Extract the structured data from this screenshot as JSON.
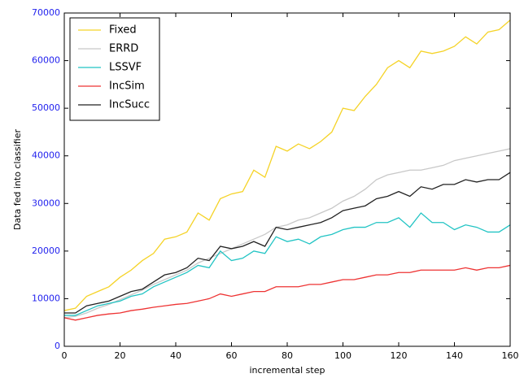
{
  "chart_data": {
    "type": "line",
    "xlabel": "incremental step",
    "ylabel": "Data fed into classifier",
    "x": [
      0,
      4,
      8,
      12,
      16,
      20,
      24,
      28,
      32,
      36,
      40,
      44,
      48,
      52,
      56,
      60,
      64,
      68,
      72,
      76,
      80,
      84,
      88,
      92,
      96,
      100,
      104,
      108,
      112,
      116,
      120,
      124,
      128,
      132,
      136,
      140,
      144,
      148,
      152,
      156,
      160
    ],
    "series": [
      {
        "name": "Fixed",
        "color": "#f5d327",
        "values": [
          7500,
          8000,
          10500,
          11500,
          12500,
          14500,
          16000,
          18000,
          19500,
          22500,
          23000,
          24000,
          28000,
          26500,
          31000,
          32000,
          32500,
          37000,
          35500,
          42000,
          41000,
          42500,
          41500,
          43000,
          45000,
          50000,
          49500,
          52500,
          55000,
          58500,
          60000,
          58500,
          62000,
          61500,
          62000,
          63000,
          65000,
          63500,
          66000,
          66500,
          68500
        ]
      },
      {
        "name": "ERRD",
        "color": "#c8c8c8",
        "values": [
          6000,
          6300,
          7000,
          8000,
          8800,
          9800,
          10800,
          11800,
          13000,
          14000,
          15000,
          16000,
          17500,
          18500,
          19500,
          20500,
          21500,
          22500,
          23500,
          25000,
          25500,
          26500,
          27000,
          28000,
          29000,
          30500,
          31500,
          33000,
          35000,
          36000,
          36500,
          37000,
          37000,
          37500,
          38000,
          39000,
          39500,
          40000,
          40500,
          41000,
          41500
        ]
      },
      {
        "name": "LSSVF",
        "color": "#22c4c4",
        "values": [
          6500,
          6500,
          7500,
          8500,
          9000,
          9500,
          10500,
          11000,
          12500,
          13500,
          14500,
          15500,
          17000,
          16500,
          20000,
          18000,
          18500,
          20000,
          19500,
          23000,
          22000,
          22500,
          21500,
          23000,
          23500,
          24500,
          25000,
          25000,
          26000,
          26000,
          27000,
          25000,
          28000,
          26000,
          26000,
          24500,
          25500,
          25000,
          24000,
          24000,
          25500
        ]
      },
      {
        "name": "IncSim",
        "color": "#ee3333",
        "values": [
          6000,
          5500,
          6000,
          6500,
          6800,
          7000,
          7500,
          7800,
          8200,
          8500,
          8800,
          9000,
          9500,
          10000,
          11000,
          10500,
          11000,
          11500,
          11500,
          12500,
          12500,
          12500,
          13000,
          13000,
          13500,
          14000,
          14000,
          14500,
          15000,
          15000,
          15500,
          15500,
          16000,
          16000,
          16000,
          16000,
          16500,
          16000,
          16500,
          16500,
          17000
        ]
      },
      {
        "name": "IncSucc",
        "color": "#222222",
        "values": [
          7000,
          7000,
          8500,
          9000,
          9500,
          10500,
          11500,
          12000,
          13500,
          15000,
          15500,
          16500,
          18500,
          18000,
          21000,
          20500,
          21000,
          22000,
          21000,
          25000,
          24500,
          25000,
          25500,
          26000,
          27000,
          28500,
          29000,
          29500,
          31000,
          31500,
          32500,
          31500,
          33500,
          33000,
          34000,
          34000,
          35000,
          34500,
          35000,
          35000,
          36500
        ]
      }
    ],
    "xlim": [
      0,
      160
    ],
    "xticks": [
      0,
      20,
      40,
      60,
      80,
      100,
      120,
      140,
      160
    ],
    "ylim": [
      0,
      70000
    ],
    "yticks": [
      0,
      10000,
      20000,
      30000,
      40000,
      50000,
      60000,
      70000
    ],
    "legend": "upper left"
  }
}
